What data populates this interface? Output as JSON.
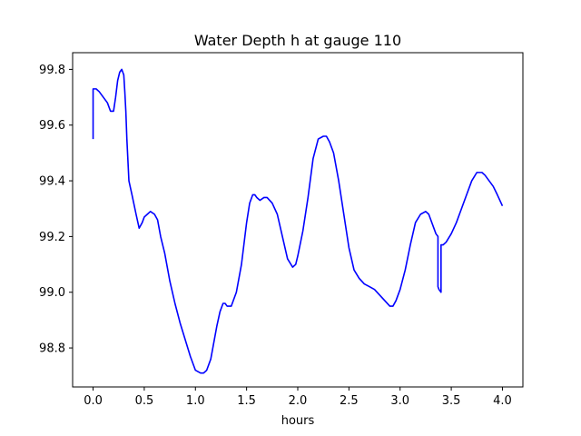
{
  "chart_data": {
    "type": "line",
    "title": "Water Depth h at gauge 110",
    "xlabel": "hours",
    "ylabel": "",
    "xlim": [
      -0.2,
      4.2
    ],
    "ylim": [
      98.66,
      99.86
    ],
    "xticks": [
      0.0,
      0.5,
      1.0,
      1.5,
      2.0,
      2.5,
      3.0,
      3.5,
      4.0
    ],
    "xtick_labels": [
      "0.0",
      "0.5",
      "1.0",
      "1.5",
      "2.0",
      "2.5",
      "3.0",
      "3.5",
      "4.0"
    ],
    "yticks": [
      98.8,
      99.0,
      99.2,
      99.4,
      99.6,
      99.8
    ],
    "ytick_labels": [
      "98.8",
      "99.0",
      "99.2",
      "99.4",
      "99.6",
      "99.8"
    ],
    "grid": false,
    "series": [
      {
        "name": "",
        "color": "#0000ff",
        "x": [
          0.0,
          0.0,
          0.03,
          0.06,
          0.1,
          0.14,
          0.17,
          0.2,
          0.22,
          0.24,
          0.26,
          0.28,
          0.3,
          0.31,
          0.32,
          0.33,
          0.35,
          0.38,
          0.42,
          0.45,
          0.48,
          0.5,
          0.53,
          0.56,
          0.6,
          0.63,
          0.66,
          0.7,
          0.75,
          0.8,
          0.85,
          0.9,
          0.95,
          1.0,
          1.05,
          1.08,
          1.11,
          1.15,
          1.18,
          1.21,
          1.24,
          1.27,
          1.29,
          1.31,
          1.35,
          1.4,
          1.45,
          1.5,
          1.53,
          1.56,
          1.58,
          1.6,
          1.63,
          1.67,
          1.7,
          1.75,
          1.8,
          1.85,
          1.9,
          1.95,
          1.98,
          2.0,
          2.05,
          2.1,
          2.15,
          2.2,
          2.25,
          2.28,
          2.31,
          2.35,
          2.4,
          2.45,
          2.5,
          2.55,
          2.6,
          2.65,
          2.7,
          2.75,
          2.8,
          2.85,
          2.9,
          2.93,
          2.96,
          3.0,
          3.05,
          3.1,
          3.15,
          3.2,
          3.25,
          3.28,
          3.3,
          3.33,
          3.35,
          3.37,
          3.37,
          3.38,
          3.4,
          3.4,
          3.42,
          3.45,
          3.5,
          3.55,
          3.6,
          3.65,
          3.7,
          3.75,
          3.78,
          3.8,
          3.83,
          3.87,
          3.91,
          3.95,
          4.0
        ],
        "y": [
          99.55,
          99.73,
          99.73,
          99.72,
          99.7,
          99.68,
          99.65,
          99.65,
          99.7,
          99.76,
          99.79,
          99.8,
          99.78,
          99.72,
          99.65,
          99.55,
          99.4,
          99.35,
          99.28,
          99.23,
          99.25,
          99.27,
          99.28,
          99.29,
          99.28,
          99.26,
          99.2,
          99.14,
          99.04,
          98.96,
          98.89,
          98.83,
          98.77,
          98.72,
          98.71,
          98.71,
          98.72,
          98.76,
          98.82,
          98.88,
          98.93,
          98.96,
          98.96,
          98.95,
          98.95,
          99.0,
          99.1,
          99.25,
          99.32,
          99.35,
          99.35,
          99.34,
          99.33,
          99.34,
          99.34,
          99.32,
          99.28,
          99.2,
          99.12,
          99.09,
          99.1,
          99.13,
          99.22,
          99.34,
          99.48,
          99.55,
          99.56,
          99.56,
          99.54,
          99.5,
          99.4,
          99.28,
          99.16,
          99.08,
          99.05,
          99.03,
          99.02,
          99.01,
          98.99,
          98.97,
          98.95,
          98.95,
          98.97,
          99.01,
          99.08,
          99.17,
          99.25,
          99.28,
          99.29,
          99.28,
          99.26,
          99.23,
          99.21,
          99.2,
          99.02,
          99.01,
          99.0,
          99.17,
          99.17,
          99.18,
          99.21,
          99.25,
          99.3,
          99.35,
          99.4,
          99.43,
          99.43,
          99.43,
          99.42,
          99.4,
          99.38,
          99.35,
          99.31
        ]
      }
    ]
  }
}
